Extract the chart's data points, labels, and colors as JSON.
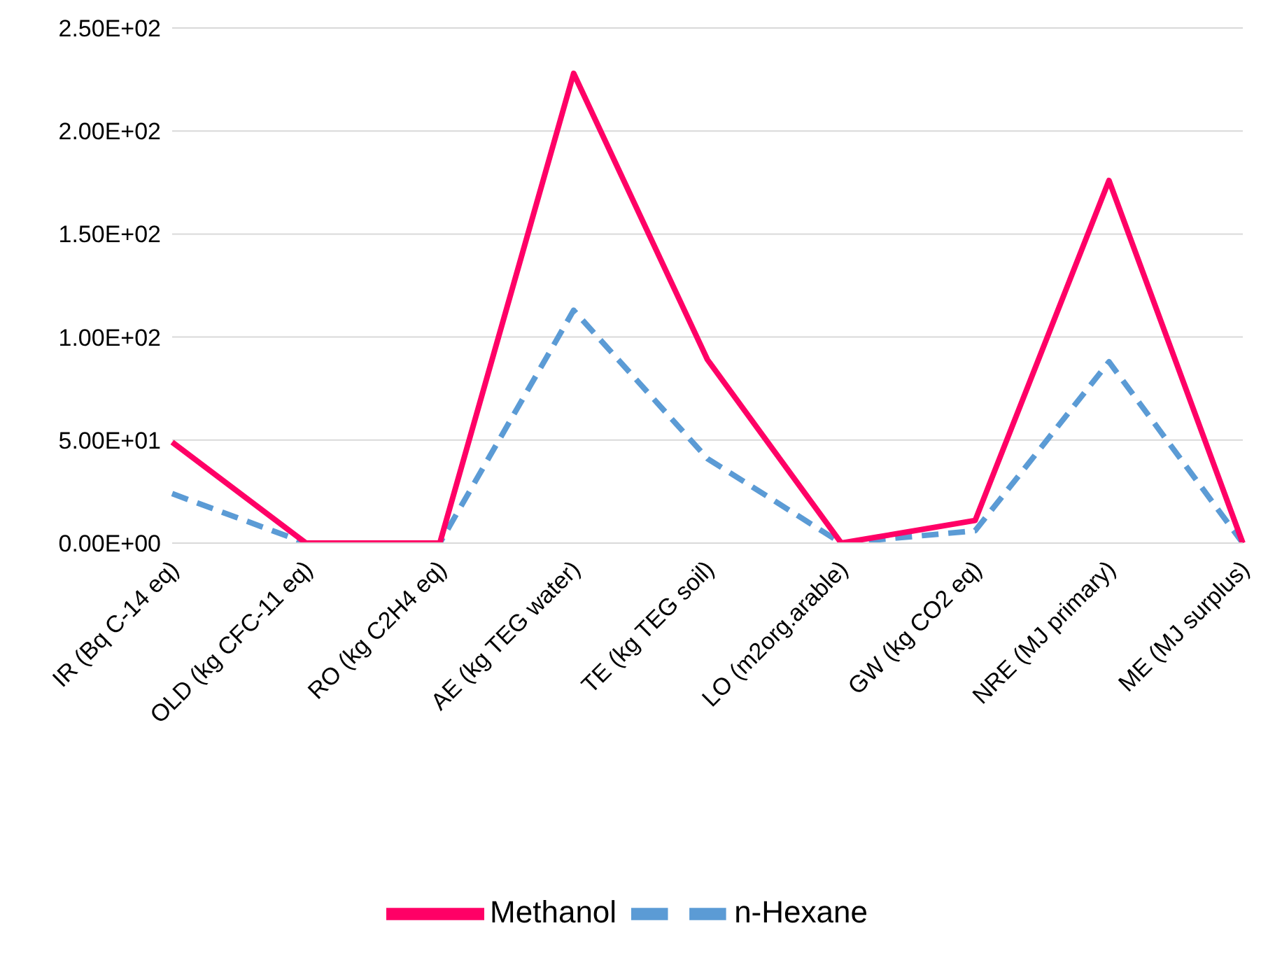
{
  "chart_data": {
    "type": "line",
    "categories": [
      "IR (Bq C-14 eq)",
      "OLD (kg CFC-11 eq)",
      "RO (kg C2H4 eq)",
      "AE (kg TEG water)",
      "TE (kg TEG soil)",
      "LO (m2org.arable)",
      "GW (kg CO2 eq)",
      "NRE (MJ primary)",
      "ME (MJ surplus)"
    ],
    "series": [
      {
        "name": "n-Hexane",
        "color": "#5b9bd5",
        "line_style": "dashed",
        "values": [
          24,
          0,
          0,
          113,
          41,
          0,
          6,
          88,
          0
        ]
      },
      {
        "name": "Methanol",
        "color": "#ff0066",
        "line_style": "solid",
        "values": [
          49,
          0,
          0,
          228,
          89,
          0,
          11,
          176,
          0
        ]
      }
    ],
    "ylim": [
      0,
      250
    ],
    "yticks": [
      {
        "value": 0,
        "label": "0.00E+00"
      },
      {
        "value": 50,
        "label": "5.00E+01"
      },
      {
        "value": 100,
        "label": "1.00E+02"
      },
      {
        "value": 150,
        "label": "1.50E+02"
      },
      {
        "value": 200,
        "label": "2.00E+02"
      },
      {
        "value": 250,
        "label": "2.50E+02"
      }
    ],
    "grid": "y",
    "legend": "bottom",
    "marker": "none"
  }
}
